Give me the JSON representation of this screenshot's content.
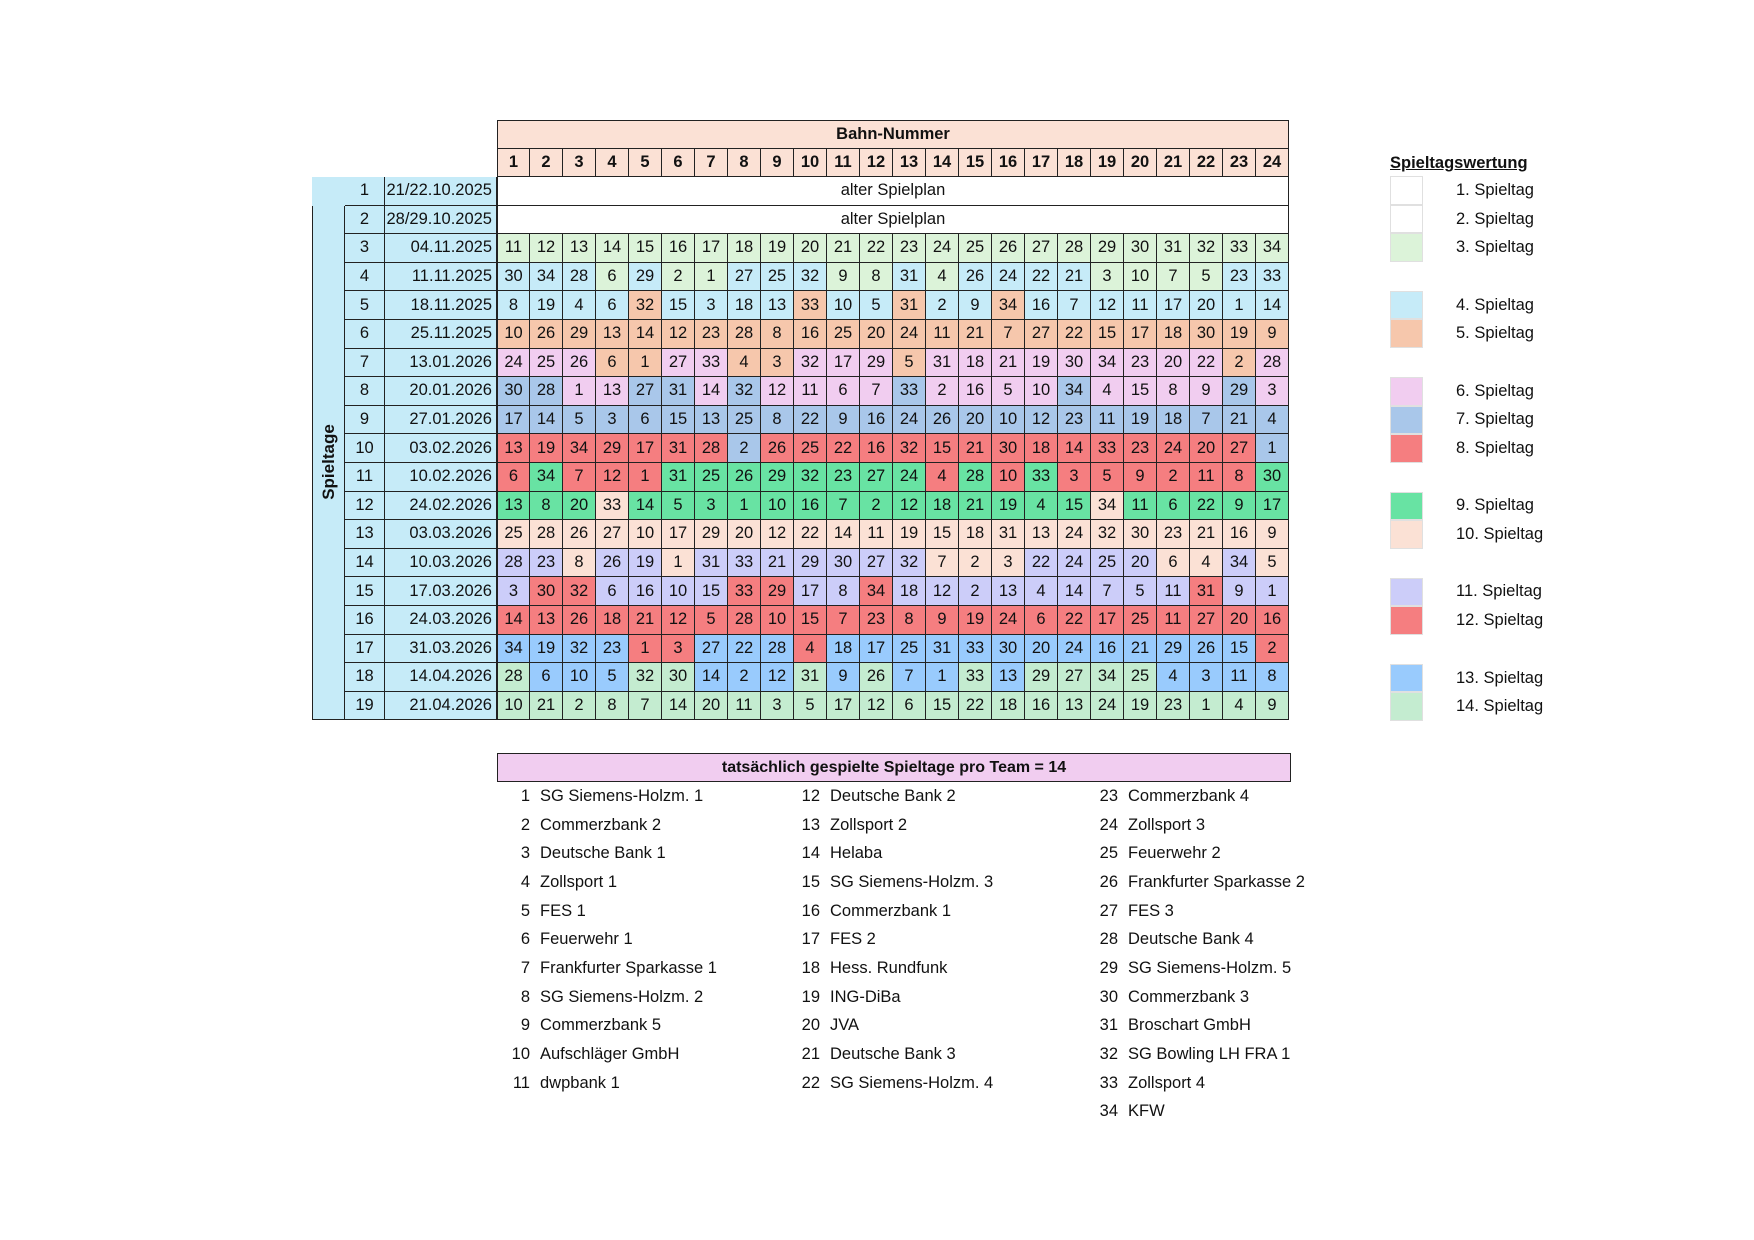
{
  "header": {
    "bahn_title": "Bahn-Nummer",
    "side_label": "Spieltage"
  },
  "lanes": [
    "1",
    "2",
    "3",
    "4",
    "5",
    "6",
    "7",
    "8",
    "9",
    "10",
    "11",
    "12",
    "13",
    "14",
    "15",
    "16",
    "17",
    "18",
    "19",
    "20",
    "21",
    "22",
    "23",
    "24"
  ],
  "spieltag_colors": {
    "1": "#ffffff",
    "2": "#ffffff",
    "3": "#dcf3d9",
    "4": "#c6ebf8",
    "5": "#f6c7ac",
    "6": "#f1cdf0",
    "7": "#a9c7ea",
    "8": "#f57e80",
    "9": "#68e3a3",
    "10": "#fbe1d5",
    "11": "#cccdf9",
    "12": "#f57e80",
    "13": "#99cbfd",
    "14": "#c4ecd0"
  },
  "old_rows": [
    {
      "num": "1",
      "date": "21/22.10.2025",
      "text": "alter Spielplan"
    },
    {
      "num": "2",
      "date": "28/29.10.2025",
      "text": "alter Spielplan"
    }
  ],
  "rows": [
    {
      "num": "3",
      "date": "04.11.2025",
      "v": [
        "11",
        "12",
        "13",
        "14",
        "15",
        "16",
        "17",
        "18",
        "19",
        "20",
        "21",
        "22",
        "23",
        "24",
        "25",
        "26",
        "27",
        "28",
        "29",
        "30",
        "31",
        "32",
        "33",
        "34"
      ],
      "s": [
        3,
        3,
        3,
        3,
        3,
        3,
        3,
        3,
        3,
        3,
        3,
        3,
        3,
        3,
        3,
        3,
        3,
        3,
        3,
        3,
        3,
        3,
        3,
        3
      ]
    },
    {
      "num": "4",
      "date": "11.11.2025",
      "v": [
        "30",
        "34",
        "28",
        "6",
        "29",
        "2",
        "1",
        "27",
        "25",
        "32",
        "9",
        "8",
        "31",
        "4",
        "26",
        "24",
        "22",
        "21",
        "3",
        "10",
        "7",
        "5",
        "23",
        "33"
      ],
      "s": [
        4,
        4,
        4,
        3,
        4,
        3,
        3,
        4,
        4,
        4,
        3,
        3,
        4,
        3,
        4,
        4,
        4,
        4,
        3,
        3,
        3,
        3,
        4,
        4
      ]
    },
    {
      "num": "5",
      "date": "18.11.2025",
      "v": [
        "8",
        "19",
        "4",
        "6",
        "32",
        "15",
        "3",
        "18",
        "13",
        "33",
        "10",
        "5",
        "31",
        "2",
        "9",
        "34",
        "16",
        "7",
        "12",
        "11",
        "17",
        "20",
        "1",
        "14"
      ],
      "s": [
        4,
        4,
        4,
        4,
        5,
        4,
        4,
        4,
        4,
        5,
        4,
        4,
        5,
        4,
        4,
        5,
        4,
        4,
        4,
        4,
        4,
        4,
        4,
        4
      ]
    },
    {
      "num": "6",
      "date": "25.11.2025",
      "v": [
        "10",
        "26",
        "29",
        "13",
        "14",
        "12",
        "23",
        "28",
        "8",
        "16",
        "25",
        "20",
        "24",
        "11",
        "21",
        "7",
        "27",
        "22",
        "15",
        "17",
        "18",
        "30",
        "19",
        "9"
      ],
      "s": [
        5,
        5,
        5,
        5,
        5,
        5,
        5,
        5,
        5,
        5,
        5,
        5,
        5,
        5,
        5,
        5,
        5,
        5,
        5,
        5,
        5,
        5,
        5,
        5
      ]
    },
    {
      "num": "7",
      "date": "13.01.2026",
      "v": [
        "24",
        "25",
        "26",
        "6",
        "1",
        "27",
        "33",
        "4",
        "3",
        "32",
        "17",
        "29",
        "5",
        "31",
        "18",
        "21",
        "19",
        "30",
        "34",
        "23",
        "20",
        "22",
        "2",
        "28"
      ],
      "s": [
        6,
        6,
        6,
        5,
        5,
        6,
        6,
        5,
        5,
        6,
        6,
        6,
        5,
        6,
        6,
        6,
        6,
        6,
        6,
        6,
        6,
        6,
        5,
        6
      ]
    },
    {
      "num": "8",
      "date": "20.01.2026",
      "v": [
        "30",
        "28",
        "1",
        "13",
        "27",
        "31",
        "14",
        "32",
        "12",
        "11",
        "6",
        "7",
        "33",
        "2",
        "16",
        "5",
        "10",
        "34",
        "4",
        "15",
        "8",
        "9",
        "29",
        "3"
      ],
      "s": [
        7,
        7,
        6,
        6,
        7,
        7,
        6,
        7,
        6,
        6,
        6,
        6,
        7,
        6,
        6,
        6,
        6,
        7,
        6,
        6,
        6,
        6,
        7,
        6
      ]
    },
    {
      "num": "9",
      "date": "27.01.2026",
      "v": [
        "17",
        "14",
        "5",
        "3",
        "6",
        "15",
        "13",
        "25",
        "8",
        "22",
        "9",
        "16",
        "24",
        "26",
        "20",
        "10",
        "12",
        "23",
        "11",
        "19",
        "18",
        "7",
        "21",
        "4"
      ],
      "s": [
        7,
        7,
        7,
        7,
        7,
        7,
        7,
        7,
        7,
        7,
        7,
        7,
        7,
        7,
        7,
        7,
        7,
        7,
        7,
        7,
        7,
        7,
        7,
        7
      ]
    },
    {
      "num": "10",
      "date": "03.02.2026",
      "v": [
        "13",
        "19",
        "34",
        "29",
        "17",
        "31",
        "28",
        "2",
        "26",
        "25",
        "22",
        "16",
        "32",
        "15",
        "21",
        "30",
        "18",
        "14",
        "33",
        "23",
        "24",
        "20",
        "27",
        "1"
      ],
      "s": [
        8,
        8,
        8,
        8,
        8,
        8,
        8,
        7,
        8,
        8,
        8,
        8,
        8,
        8,
        8,
        8,
        8,
        8,
        8,
        8,
        8,
        8,
        8,
        7
      ]
    },
    {
      "num": "11",
      "date": "10.02.2026",
      "v": [
        "6",
        "34",
        "7",
        "12",
        "1",
        "31",
        "25",
        "26",
        "29",
        "32",
        "23",
        "27",
        "24",
        "4",
        "28",
        "10",
        "33",
        "3",
        "5",
        "9",
        "2",
        "11",
        "8",
        "30"
      ],
      "s": [
        8,
        9,
        8,
        8,
        8,
        9,
        9,
        9,
        9,
        9,
        9,
        9,
        9,
        8,
        9,
        8,
        9,
        8,
        8,
        8,
        8,
        8,
        8,
        9
      ]
    },
    {
      "num": "12",
      "date": "24.02.2026",
      "v": [
        "13",
        "8",
        "20",
        "33",
        "14",
        "5",
        "3",
        "1",
        "10",
        "16",
        "7",
        "2",
        "12",
        "18",
        "21",
        "19",
        "4",
        "15",
        "34",
        "11",
        "6",
        "22",
        "9",
        "17"
      ],
      "s": [
        9,
        9,
        9,
        10,
        9,
        9,
        9,
        9,
        9,
        9,
        9,
        9,
        9,
        9,
        9,
        9,
        9,
        9,
        10,
        9,
        9,
        9,
        9,
        9
      ]
    },
    {
      "num": "13",
      "date": "03.03.2026",
      "v": [
        "25",
        "28",
        "26",
        "27",
        "10",
        "17",
        "29",
        "20",
        "12",
        "22",
        "14",
        "11",
        "19",
        "15",
        "18",
        "31",
        "13",
        "24",
        "32",
        "30",
        "23",
        "21",
        "16",
        "9"
      ],
      "s": [
        10,
        10,
        10,
        10,
        10,
        10,
        10,
        10,
        10,
        10,
        10,
        10,
        10,
        10,
        10,
        10,
        10,
        10,
        10,
        10,
        10,
        10,
        10,
        10
      ]
    },
    {
      "num": "14",
      "date": "10.03.2026",
      "v": [
        "28",
        "23",
        "8",
        "26",
        "19",
        "1",
        "31",
        "33",
        "21",
        "29",
        "30",
        "27",
        "32",
        "7",
        "2",
        "3",
        "22",
        "24",
        "25",
        "20",
        "6",
        "4",
        "34",
        "5"
      ],
      "s": [
        11,
        11,
        10,
        11,
        11,
        10,
        11,
        11,
        11,
        11,
        11,
        11,
        11,
        10,
        10,
        10,
        11,
        11,
        11,
        11,
        10,
        10,
        11,
        10
      ]
    },
    {
      "num": "15",
      "date": "17.03.2026",
      "v": [
        "3",
        "30",
        "32",
        "6",
        "16",
        "10",
        "15",
        "33",
        "29",
        "17",
        "8",
        "34",
        "18",
        "12",
        "2",
        "13",
        "4",
        "14",
        "7",
        "5",
        "11",
        "31",
        "9",
        "1"
      ],
      "s": [
        11,
        12,
        12,
        11,
        11,
        11,
        11,
        12,
        12,
        11,
        11,
        12,
        11,
        11,
        11,
        11,
        11,
        11,
        11,
        11,
        11,
        12,
        11,
        11
      ]
    },
    {
      "num": "16",
      "date": "24.03.2026",
      "v": [
        "14",
        "13",
        "26",
        "18",
        "21",
        "12",
        "5",
        "28",
        "10",
        "15",
        "7",
        "23",
        "8",
        "9",
        "19",
        "24",
        "6",
        "22",
        "17",
        "25",
        "11",
        "27",
        "20",
        "16"
      ],
      "s": [
        12,
        12,
        12,
        12,
        12,
        12,
        12,
        12,
        12,
        12,
        12,
        12,
        12,
        12,
        12,
        12,
        12,
        12,
        12,
        12,
        12,
        12,
        12,
        12
      ]
    },
    {
      "num": "17",
      "date": "31.03.2026",
      "v": [
        "34",
        "19",
        "32",
        "23",
        "1",
        "3",
        "27",
        "22",
        "28",
        "4",
        "18",
        "17",
        "25",
        "31",
        "33",
        "30",
        "20",
        "24",
        "16",
        "21",
        "29",
        "26",
        "15",
        "2"
      ],
      "s": [
        13,
        13,
        13,
        13,
        12,
        12,
        13,
        13,
        13,
        12,
        13,
        13,
        13,
        13,
        13,
        13,
        13,
        13,
        13,
        13,
        13,
        13,
        13,
        12
      ]
    },
    {
      "num": "18",
      "date": "14.04.2026",
      "v": [
        "28",
        "6",
        "10",
        "5",
        "32",
        "30",
        "14",
        "2",
        "12",
        "31",
        "9",
        "26",
        "7",
        "1",
        "33",
        "13",
        "29",
        "27",
        "34",
        "25",
        "4",
        "3",
        "11",
        "8"
      ],
      "s": [
        14,
        13,
        13,
        13,
        14,
        14,
        13,
        13,
        13,
        14,
        13,
        14,
        13,
        13,
        14,
        13,
        14,
        14,
        14,
        14,
        13,
        13,
        13,
        13
      ]
    },
    {
      "num": "19",
      "date": "21.04.2026",
      "v": [
        "10",
        "21",
        "2",
        "8",
        "7",
        "14",
        "20",
        "11",
        "3",
        "5",
        "17",
        "12",
        "6",
        "15",
        "22",
        "18",
        "16",
        "13",
        "24",
        "19",
        "23",
        "1",
        "4",
        "9"
      ],
      "s": [
        14,
        14,
        14,
        14,
        14,
        14,
        14,
        14,
        14,
        14,
        14,
        14,
        14,
        14,
        14,
        14,
        14,
        14,
        14,
        14,
        14,
        14,
        14,
        14
      ]
    }
  ],
  "banner": "tatsächlich gespielte Spieltage pro Team = 14",
  "teams": [
    [
      {
        "n": "1",
        "name": "SG Siemens-Holzm. 1"
      },
      {
        "n": "2",
        "name": "Commerzbank 2"
      },
      {
        "n": "3",
        "name": "Deutsche Bank 1"
      },
      {
        "n": "4",
        "name": "Zollsport 1"
      },
      {
        "n": "5",
        "name": "FES 1"
      },
      {
        "n": "6",
        "name": "Feuerwehr 1"
      },
      {
        "n": "7",
        "name": "Frankfurter Sparkasse 1"
      },
      {
        "n": "8",
        "name": "SG Siemens-Holzm. 2"
      },
      {
        "n": "9",
        "name": "Commerzbank 5"
      },
      {
        "n": "10",
        "name": "Aufschläger GmbH"
      },
      {
        "n": "11",
        "name": "dwpbank 1"
      }
    ],
    [
      {
        "n": "12",
        "name": "Deutsche Bank 2"
      },
      {
        "n": "13",
        "name": "Zollsport 2"
      },
      {
        "n": "14",
        "name": "Helaba"
      },
      {
        "n": "15",
        "name": "SG Siemens-Holzm. 3"
      },
      {
        "n": "16",
        "name": "Commerzbank 1"
      },
      {
        "n": "17",
        "name": "FES 2"
      },
      {
        "n": "18",
        "name": "Hess. Rundfunk"
      },
      {
        "n": "19",
        "name": "ING-DiBa"
      },
      {
        "n": "20",
        "name": "JVA"
      },
      {
        "n": "21",
        "name": "Deutsche Bank 3"
      },
      {
        "n": "22",
        "name": "SG Siemens-Holzm. 4"
      }
    ],
    [
      {
        "n": "23",
        "name": "Commerzbank 4"
      },
      {
        "n": "24",
        "name": "Zollsport 3"
      },
      {
        "n": "25",
        "name": "Feuerwehr 2"
      },
      {
        "n": "26",
        "name": "Frankfurter Sparkasse 2"
      },
      {
        "n": "27",
        "name": "FES 3"
      },
      {
        "n": "28",
        "name": "Deutsche Bank 4"
      },
      {
        "n": "29",
        "name": "SG Siemens-Holzm. 5"
      },
      {
        "n": "30",
        "name": "Commerzbank 3"
      },
      {
        "n": "31",
        "name": "Broschart GmbH"
      },
      {
        "n": "32",
        "name": "SG Bowling LH FRA 1"
      },
      {
        "n": "33",
        "name": "Zollsport 4"
      },
      {
        "n": "34",
        "name": "KFW"
      }
    ]
  ],
  "legend": {
    "title": "Spieltagswertung",
    "items": [
      {
        "key": "1",
        "label": "1. Spieltag"
      },
      {
        "key": "2",
        "label": "2. Spieltag"
      },
      {
        "key": "3",
        "label": "3. Spieltag"
      },
      {
        "key": "4",
        "label": "4. Spieltag"
      },
      {
        "key": "5",
        "label": "5. Spieltag"
      },
      {
        "key": "6",
        "label": "6. Spieltag"
      },
      {
        "key": "7",
        "label": "7. Spieltag"
      },
      {
        "key": "8",
        "label": "8. Spieltag"
      },
      {
        "key": "9",
        "label": "9. Spieltag"
      },
      {
        "key": "10",
        "label": "10. Spieltag"
      },
      {
        "key": "11",
        "label": "11. Spieltag"
      },
      {
        "key": "12",
        "label": "12. Spieltag"
      },
      {
        "key": "13",
        "label": "13. Spieltag"
      },
      {
        "key": "14",
        "label": "14. Spieltag"
      }
    ]
  }
}
